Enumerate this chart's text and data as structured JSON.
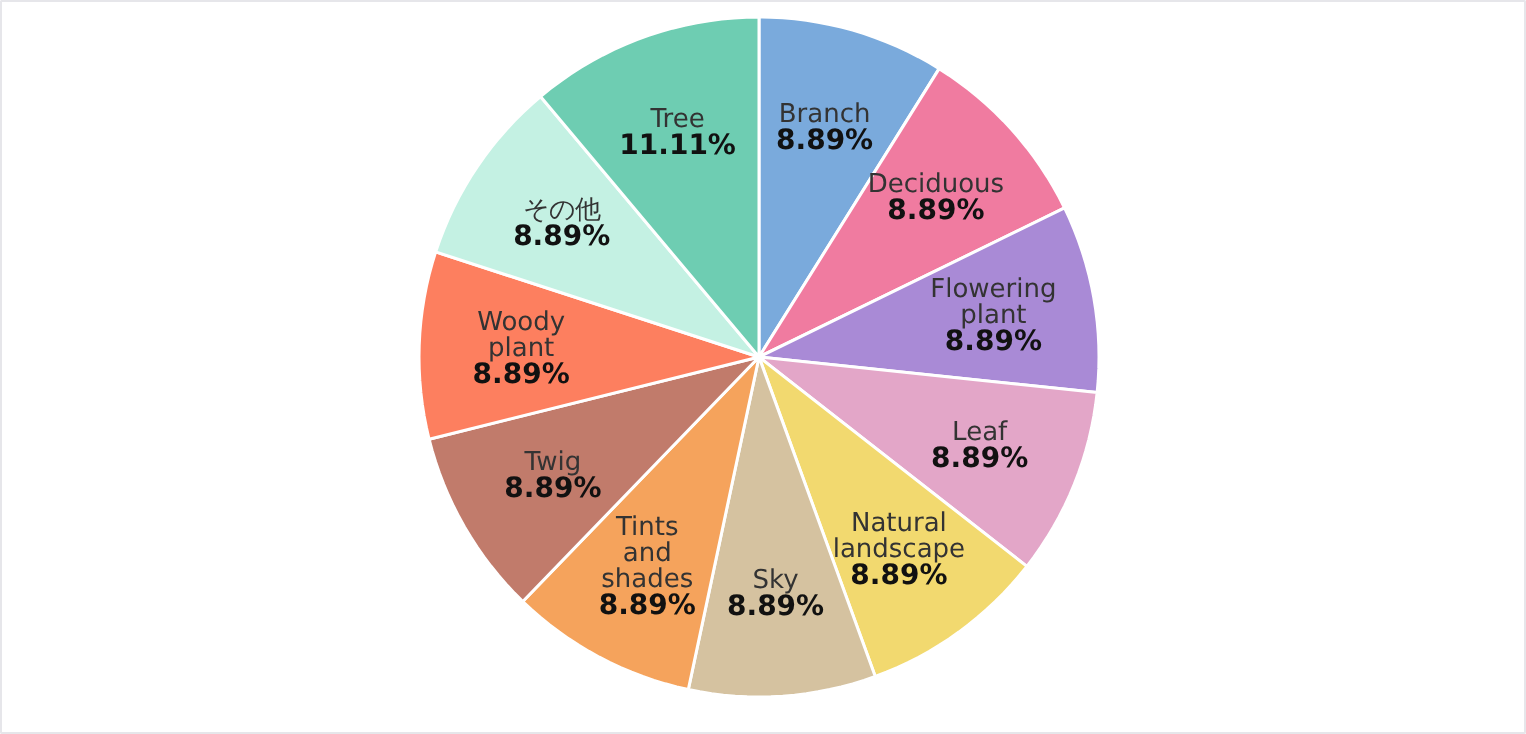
{
  "chart_data": {
    "type": "pie",
    "categories": [
      "Branch",
      "Deciduous",
      "Flowering plant",
      "Leaf",
      "Natural landscape",
      "Sky",
      "Tints and shades",
      "Twig",
      "Woody plant",
      "その他",
      "Tree"
    ],
    "values": [
      8.89,
      8.89,
      8.89,
      8.89,
      8.89,
      8.89,
      8.89,
      8.89,
      8.89,
      8.89,
      11.11
    ],
    "colors": [
      "#7aaadc",
      "#f07ba0",
      "#a98ad6",
      "#e3a6c8",
      "#f2d96f",
      "#d5c2a0",
      "#f5a35c",
      "#c17b6b",
      "#fd7f5f",
      "#c4f1e3",
      "#6ecdb2"
    ],
    "value_labels": [
      "8.89%",
      "8.89%",
      "8.89%",
      "8.89%",
      "8.89%",
      "8.89%",
      "8.89%",
      "8.89%",
      "8.89%",
      "8.89%",
      "11.11%"
    ]
  }
}
